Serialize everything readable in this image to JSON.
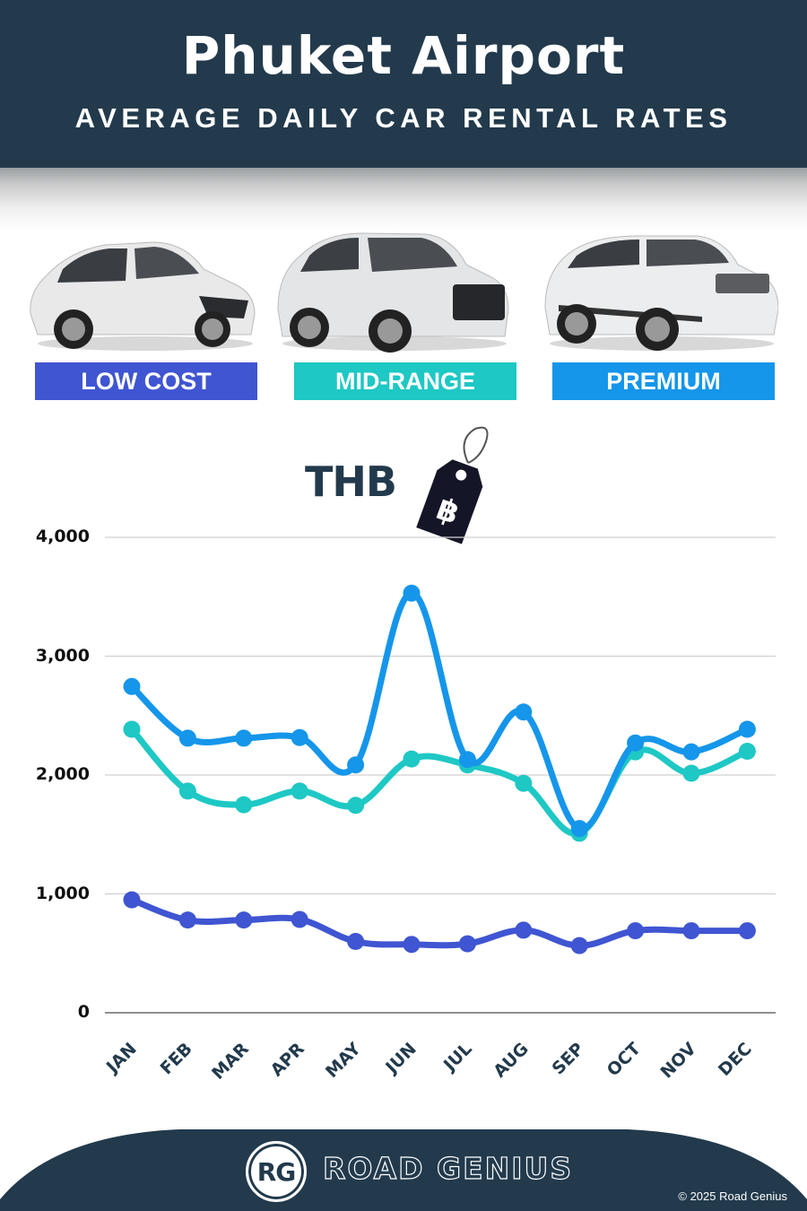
{
  "header": {
    "title": "Phuket Airport",
    "subtitle": "AVERAGE DAILY CAR RENTAL RATES",
    "background_color": "#223a4c"
  },
  "categories": [
    {
      "label": "LOW COST",
      "color": "#3f55d2",
      "car_icon": "hatchback-car-icon"
    },
    {
      "label": "MID-RANGE",
      "color": "#1ec8c4",
      "car_icon": "suv-car-icon"
    },
    {
      "label": "PREMIUM",
      "color": "#1596ea",
      "car_icon": "luxury-suv-car-icon"
    }
  ],
  "currency": {
    "label": "THB",
    "symbol": "฿",
    "icon": "price-tag-icon"
  },
  "chart_data": {
    "type": "line",
    "title": "Phuket Airport Average Daily Car Rental Rates",
    "xlabel": "",
    "ylabel": "THB",
    "ylim": [
      0,
      4000
    ],
    "yticks": [
      0,
      1000,
      2000,
      3000,
      4000
    ],
    "ytick_labels": [
      "0",
      "1,000",
      "2,000",
      "3,000",
      "4,000"
    ],
    "grid": true,
    "legend_position": "top (category labels under car images)",
    "categories": [
      "JAN",
      "FEB",
      "MAR",
      "APR",
      "MAY",
      "JUN",
      "JUL",
      "AUG",
      "SEP",
      "OCT",
      "NOV",
      "DEC"
    ],
    "series": [
      {
        "name": "Low Cost",
        "color": "#3f55d2",
        "values": [
          950,
          780,
          780,
          785,
          600,
          575,
          580,
          695,
          565,
          690,
          690,
          690
        ]
      },
      {
        "name": "Mid-Range",
        "color": "#1ec8c4",
        "values": [
          2385,
          1865,
          1750,
          1865,
          1745,
          2135,
          2085,
          1930,
          1510,
          2195,
          2015,
          2200
        ]
      },
      {
        "name": "Premium",
        "color": "#1596ea",
        "values": [
          2745,
          2310,
          2310,
          2315,
          2085,
          3530,
          2130,
          2530,
          1550,
          2270,
          2195,
          2385
        ]
      }
    ]
  },
  "footer": {
    "logo_initials": "RG",
    "brand": "ROAD GENIUS",
    "copyright": "© 2025 Road Genius"
  }
}
